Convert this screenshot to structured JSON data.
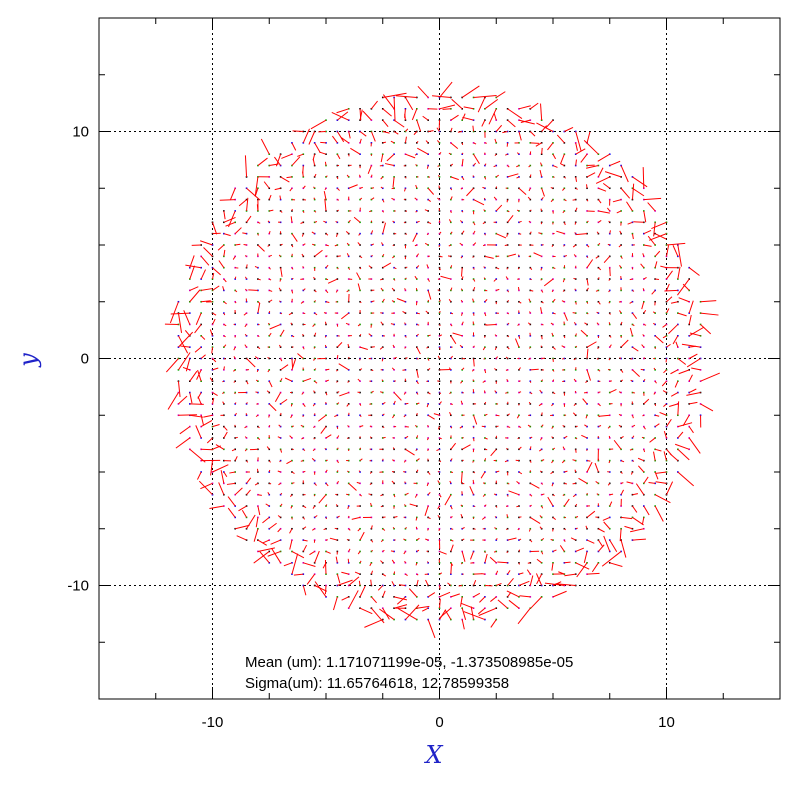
{
  "chart_data": {
    "type": "scatter",
    "subtype": "quiver",
    "title": "",
    "xlabel": "X",
    "ylabel": "y",
    "xlim": [
      -15,
      15
    ],
    "ylim": [
      -15,
      15
    ],
    "grid": true,
    "x_major_ticks": [
      -10,
      0,
      10
    ],
    "y_major_ticks": [
      -10,
      0,
      10
    ],
    "x_tick_labels": [
      "-10",
      "0",
      "10"
    ],
    "y_tick_labels": [
      "-10",
      "0",
      "10"
    ],
    "minor_tick_step": 2.5,
    "field": {
      "shape": "disk",
      "center": [
        0,
        0
      ],
      "radius": 11.8,
      "grid_step": 0.5,
      "marker_colors": [
        "#00aa00",
        "#0000ff",
        "#cc00cc",
        "#000000"
      ],
      "vector_color": "#ff0000"
    },
    "annotations": [
      {
        "label": "Mean (um): ",
        "value": "1.171071199e-05, -1.373508985e-05"
      },
      {
        "label": "Sigma(um): ",
        "value": "11.65764618, 12.78599358"
      }
    ],
    "colors": {
      "axis_title": "#1f23c8",
      "vector": "#ff0000"
    }
  }
}
